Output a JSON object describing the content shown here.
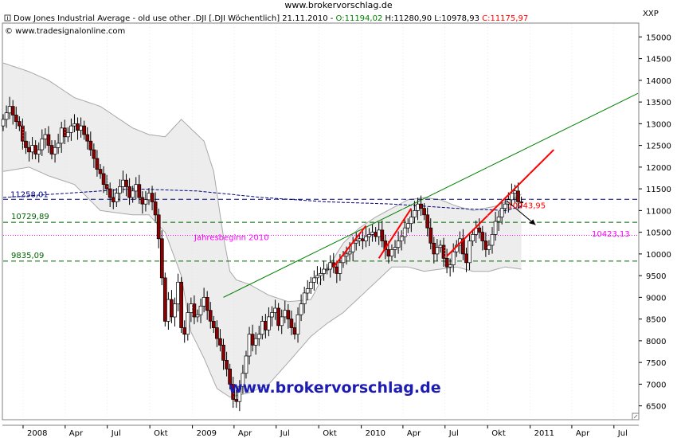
{
  "page": {
    "site_title": "www.brokervorschlag.de"
  },
  "header": {
    "title_text": "Dow Jones Industrial Average - old use other .DJI [.DJI  Wöchentlich] 21.11.2010 - ",
    "o_text": "O:11194,02",
    "hl_text": " H:11280,90 L:10978,93 ",
    "c_text": "C:11175,97",
    "copyright": "© www.tradesignalonline.com"
  },
  "watermark": "www.brokervorschlag.de",
  "colors": {
    "up": "#ffffff",
    "down": "#8b0000",
    "wick": "#000000",
    "band_fill": "#ededed",
    "band_edge": "#a8a8a8",
    "dashed_blue": "#000080",
    "support_green": "#006400",
    "pink": "#ff00ff",
    "trend_green": "#008000",
    "trend_red": "#ff0000",
    "o_color": "#008000",
    "c_color": "#ff0000"
  },
  "chart_data": {
    "type": "candlestick",
    "ylabel": "XXP",
    "ylim": [
      6200,
      15300
    ],
    "y_ticks": [
      "15000",
      "14500",
      "14000",
      "13500",
      "13000",
      "12500",
      "12000",
      "11500",
      "11000",
      "10500",
      "10000",
      "9500",
      "9000",
      "8500",
      "8000",
      "7500",
      "7000",
      "6500"
    ],
    "x_ticks": [
      "2008",
      "Apr",
      "Jul",
      "Okt",
      "2009",
      "Apr",
      "Jul",
      "Okt",
      "2010",
      "Apr",
      "Jul",
      "Okt",
      "2011",
      "Apr",
      "Jul"
    ],
    "x_range": [
      "2007-11-19",
      "2011-08-22"
    ],
    "levels": [
      {
        "label": "11258,01",
        "value": 11258.01,
        "style": "dashed",
        "color": "#000080"
      },
      {
        "label": "10729,89",
        "value": 10729.89,
        "style": "dashed",
        "color": "#006400"
      },
      {
        "label": "9835,09",
        "value": 9835.09,
        "style": "dashed",
        "color": "#006400"
      },
      {
        "label": "Jahresbeginn 2010",
        "value": 10428.05,
        "style": "dotted",
        "color": "#ff00ff"
      },
      {
        "label": "10423,13",
        "value": 10423.13,
        "style": "none",
        "color": "#ff00ff"
      }
    ],
    "annotation": {
      "label": "10943,95",
      "value": 10943.95,
      "date": "2010-11-22"
    },
    "weekly_closes": [
      13100,
      13250,
      13400,
      13200,
      13050,
      12950,
      12600,
      12450,
      12350,
      12500,
      12300,
      12400,
      12650,
      12750,
      12500,
      12300,
      12450,
      12550,
      12900,
      12700,
      12800,
      12950,
      13000,
      12850,
      12950,
      12750,
      12600,
      12400,
      12200,
      11950,
      11850,
      11600,
      11500,
      11300,
      11200,
      11400,
      11550,
      11700,
      11550,
      11300,
      11450,
      11600,
      11300,
      11150,
      11250,
      11400,
      11200,
      10900,
      10350,
      9450,
      8450,
      8950,
      8550,
      8850,
      9350,
      8300,
      8150,
      8650,
      8850,
      8550,
      8600,
      8800,
      9000,
      8700,
      8450,
      8300,
      8050,
      7900,
      7550,
      7350,
      7000,
      6650,
      6600,
      6950,
      7250,
      7650,
      8150,
      7900,
      8050,
      8150,
      8450,
      8250,
      8550,
      8650,
      8750,
      8350,
      8550,
      8700,
      8500,
      8300,
      8150,
      8600,
      8850,
      9100,
      9200,
      9350,
      9450,
      9500,
      9550,
      9650,
      9650,
      9800,
      9700,
      9550,
      9800,
      9950,
      10000,
      10050,
      10250,
      10300,
      10350,
      10300,
      10400,
      10450,
      10500,
      10400,
      10550,
      10300,
      10100,
      9950,
      10100,
      10150,
      10300,
      10400,
      10600,
      10700,
      10850,
      11000,
      11150,
      11050,
      10900,
      10600,
      10250,
      10000,
      10150,
      10200,
      9900,
      9700,
      9750,
      10050,
      10200,
      10350,
      10000,
      9800,
      10300,
      10450,
      10600,
      10500,
      10300,
      10100,
      10200,
      10450,
      10750,
      10850,
      11050,
      11150,
      11250,
      11400,
      11450,
      11200,
      11175.97
    ],
    "bollinger": {
      "upper": [
        [
          0,
          14400
        ],
        [
          8,
          14200
        ],
        [
          14,
          14000
        ],
        [
          22,
          13600
        ],
        [
          30,
          13400
        ],
        [
          40,
          12900
        ],
        [
          45,
          12750
        ],
        [
          50,
          12700
        ],
        [
          55,
          13100
        ],
        [
          62,
          12600
        ],
        [
          65,
          11900
        ],
        [
          68,
          10400
        ],
        [
          70,
          9600
        ],
        [
          72,
          9400
        ],
        [
          76,
          9300
        ],
        [
          82,
          9050
        ],
        [
          88,
          8900
        ],
        [
          95,
          8950
        ],
        [
          100,
          9650
        ],
        [
          105,
          10250
        ],
        [
          110,
          10600
        ],
        [
          115,
          10850
        ],
        [
          120,
          11050
        ],
        [
          125,
          11250
        ],
        [
          130,
          11300
        ],
        [
          135,
          11250
        ],
        [
          140,
          11100
        ],
        [
          145,
          11000
        ],
        [
          152,
          11100
        ],
        [
          158,
          11300
        ],
        [
          163,
          11500
        ],
        [
          166,
          11550
        ]
      ],
      "lower": [
        [
          0,
          11900
        ],
        [
          8,
          12000
        ],
        [
          14,
          11800
        ],
        [
          22,
          11600
        ],
        [
          30,
          11000
        ],
        [
          40,
          10900
        ],
        [
          45,
          10900
        ],
        [
          50,
          10500
        ],
        [
          55,
          9500
        ],
        [
          58,
          8200
        ],
        [
          62,
          7600
        ],
        [
          66,
          6900
        ],
        [
          70,
          6700
        ],
        [
          76,
          6800
        ],
        [
          82,
          7000
        ],
        [
          88,
          7500
        ],
        [
          95,
          8100
        ],
        [
          100,
          8400
        ],
        [
          105,
          8650
        ],
        [
          110,
          9000
        ],
        [
          115,
          9350
        ],
        [
          120,
          9700
        ],
        [
          125,
          9700
        ],
        [
          130,
          9600
        ],
        [
          135,
          9650
        ],
        [
          140,
          9700
        ],
        [
          145,
          9600
        ],
        [
          150,
          9600
        ],
        [
          155,
          9700
        ],
        [
          160,
          9650
        ],
        [
          166,
          9800
        ]
      ],
      "ma": [
        [
          0,
          11300
        ],
        [
          20,
          11400
        ],
        [
          40,
          11500
        ],
        [
          60,
          11450
        ],
        [
          80,
          11300
        ],
        [
          100,
          11200
        ],
        [
          120,
          11150
        ],
        [
          140,
          11050
        ],
        [
          155,
          11000
        ],
        [
          166,
          11200
        ]
      ]
    },
    "trend_lines": [
      {
        "color": "#008000",
        "from": [
          "2009-03-09",
          9000
        ],
        "to": [
          "2011-08-22",
          13700
        ]
      },
      {
        "color": "#ff0000",
        "from": [
          "2009-11-02",
          9700
        ],
        "to": [
          "2010-01-11",
          10650
        ]
      },
      {
        "color": "#ff0000",
        "from": [
          "2010-02-08",
          9900
        ],
        "to": [
          "2010-04-19",
          11050
        ]
      },
      {
        "color": "#ff0000",
        "from": [
          "2010-07-05",
          9950
        ],
        "to": [
          "2011-02-21",
          12400
        ]
      }
    ]
  }
}
